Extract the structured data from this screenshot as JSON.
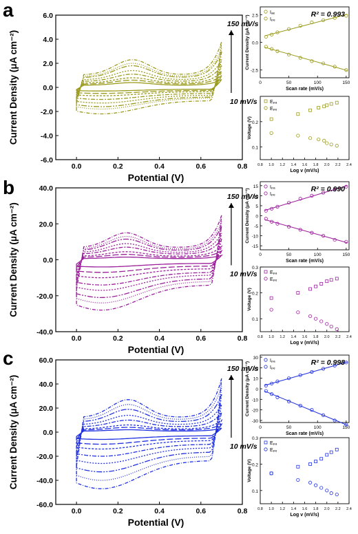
{
  "panels": [
    {
      "letter": "a",
      "color": "#9a9a1c",
      "main": {
        "ylabel": "Current Density (μA cm⁻²)",
        "xlabel": "Potential (V)",
        "y_ticks": [
          "-6.0",
          "-4.0",
          "-2.0",
          "0.0",
          "2.0",
          "4.0",
          "6.0"
        ],
        "x_ticks": [
          "0.0",
          "0.2",
          "0.4",
          "0.6",
          "0.8"
        ],
        "high_label": "150 mV/s",
        "low_label": "10 mV/s"
      },
      "rate": {
        "ylabel": "Current Density (μA cm⁻²)",
        "xlabel": "Scan rate (mV/s)",
        "y_ticks": [
          "-2.5",
          "0.0",
          "2.5"
        ],
        "x_ticks": [
          "0",
          "50",
          "100",
          "150"
        ],
        "r2": "R² = 0.993",
        "legend": [
          "Iₐₑ",
          "Iₚₑ"
        ]
      },
      "volt": {
        "ylabel": "Voltage (V)",
        "xlabel": "Log v (mV/s)",
        "y_ticks": [
          "0.1",
          "0.2"
        ],
        "x_ticks": [
          "0.8",
          "1.0",
          "1.2",
          "1.4",
          "1.6",
          "1.8",
          "2.0",
          "2.2",
          "2.4"
        ],
        "legend": [
          "Eₚₐ",
          "Eₚₑ"
        ]
      }
    },
    {
      "letter": "b",
      "color": "#9b1f9b",
      "main": {
        "ylabel": "Current Density (μA cm⁻²)",
        "xlabel": "Potential (V)",
        "y_ticks": [
          "-40.0",
          "-20.0",
          "0.0",
          "20.0",
          "40.0"
        ],
        "x_ticks": [
          "0.0",
          "0.2",
          "0.4",
          "0.6",
          "0.8"
        ],
        "high_label": "150 mV/s",
        "low_label": "10 mV/s"
      },
      "rate": {
        "ylabel": "Current Density (μA cm⁻²)",
        "xlabel": "Scan rate (mV/s)",
        "y_ticks": [
          "-15",
          "-10",
          "-5",
          "0",
          "5",
          "10",
          "15"
        ],
        "x_ticks": [
          "0",
          "50",
          "100",
          "150"
        ],
        "r2": "R² = 0.990",
        "legend": [
          "Iₚₐ",
          "Iₚₑ"
        ]
      },
      "volt": {
        "ylabel": "Voltage (V)",
        "xlabel": "Log v (mV/s)",
        "y_ticks": [
          "0.1",
          "0.2",
          "0.3"
        ],
        "x_ticks": [
          "0.8",
          "1.0",
          "1.2",
          "1.4",
          "1.6",
          "1.8",
          "2.0",
          "2.2",
          "2.4"
        ],
        "legend": [
          "Eₚₐ",
          "Eₚₑ"
        ]
      }
    },
    {
      "letter": "c",
      "color": "#1f2fe0",
      "main": {
        "ylabel": "Current Density (μA cm⁻²)",
        "xlabel": "Potential (V)",
        "y_ticks": [
          "-60.0",
          "-40.0",
          "-20.0",
          "0.0",
          "20.0",
          "40.0",
          "60.0"
        ],
        "x_ticks": [
          "0.0",
          "0.2",
          "0.4",
          "0.6",
          "0.8"
        ],
        "high_label": "150 mV/s",
        "low_label": "10 mV/s"
      },
      "rate": {
        "ylabel": "Current Density (μA cm⁻²)",
        "xlabel": "Scan rate (mV/s)",
        "y_ticks": [
          "-30",
          "-20",
          "-10",
          "0",
          "10",
          "20",
          "30"
        ],
        "x_ticks": [
          "0",
          "50",
          "100",
          "150"
        ],
        "r2": "R² = 0.998",
        "legend": [
          "Iₚₐ",
          "Iₚₑ"
        ]
      },
      "volt": {
        "ylabel": "Voltage (V)",
        "xlabel": "Log v (mV/s)",
        "y_ticks": [
          "0.1",
          "0.2",
          "0.3"
        ],
        "x_ticks": [
          "0.8",
          "1.0",
          "1.2",
          "1.4",
          "1.6",
          "1.8",
          "2.0",
          "2.2",
          "2.4"
        ],
        "legend": [
          "Eₚₐ",
          "Eₚₑ"
        ]
      }
    }
  ],
  "chart_data": [
    {
      "panel": "a",
      "type": "line",
      "chart": "cyclic voltammograms",
      "xlabel": "Potential (V)",
      "ylabel": "Current Density (μA cm⁻²)",
      "xlim": [
        -0.1,
        0.8
      ],
      "ylim": [
        -6,
        6
      ],
      "x_range_data": [
        0.0,
        0.7
      ],
      "scan_rates_mV_s": [
        10,
        20,
        30,
        50,
        70,
        100,
        120,
        150
      ],
      "peak_anodic_current": [
        0.4,
        0.6,
        0.8,
        1.1,
        1.4,
        1.8,
        2.0,
        2.3
      ],
      "peak_cathodic_current": [
        -0.3,
        -0.5,
        -0.7,
        -1.0,
        -1.3,
        -1.6,
        -1.8,
        -2.2
      ],
      "anodic_peak_potential_V": 0.27
    },
    {
      "panel": "a",
      "type": "scatter",
      "chart": "peak current vs scan rate",
      "xlabel": "Scan rate (mV/s)",
      "ylabel": "Current Density (μA cm⁻²)",
      "xlim": [
        0,
        155
      ],
      "ylim": [
        -3.2,
        3.2
      ],
      "series": [
        {
          "name": "Iₐₑ",
          "x": [
            10,
            20,
            30,
            50,
            70,
            90,
            110,
            130,
            150
          ],
          "y": [
            0.5,
            0.7,
            0.9,
            1.2,
            1.5,
            1.8,
            2.0,
            2.2,
            2.4
          ]
        },
        {
          "name": "Iₚₑ",
          "x": [
            10,
            20,
            30,
            50,
            70,
            90,
            110,
            130,
            150
          ],
          "y": [
            -0.4,
            -0.6,
            -0.8,
            -1.1,
            -1.4,
            -1.7,
            -1.9,
            -2.2,
            -2.5
          ]
        }
      ],
      "annotation": "R² = 0.993"
    },
    {
      "panel": "a",
      "type": "scatter",
      "chart": "peak potential vs log scan rate",
      "xlabel": "Log v (mV/s)",
      "ylabel": "Voltage (V)",
      "xlim": [
        0.8,
        2.4
      ],
      "ylim": [
        0.05,
        0.3
      ],
      "series": [
        {
          "name": "Eₚₐ",
          "x": [
            1.0,
            1.48,
            1.7,
            1.85,
            1.95,
            2.0,
            2.08,
            2.18
          ],
          "y": [
            0.21,
            0.23,
            0.245,
            0.255,
            0.26,
            0.265,
            0.27,
            0.275
          ]
        },
        {
          "name": "Eₚₑ",
          "x": [
            1.0,
            1.48,
            1.7,
            1.85,
            1.95,
            2.0,
            2.08,
            2.18
          ],
          "y": [
            0.155,
            0.145,
            0.135,
            0.13,
            0.125,
            0.115,
            0.11,
            0.105
          ]
        }
      ]
    },
    {
      "panel": "b",
      "type": "line",
      "chart": "cyclic voltammograms",
      "xlabel": "Potential (V)",
      "ylabel": "Current Density (μA cm⁻²)",
      "xlim": [
        -0.1,
        0.8
      ],
      "ylim": [
        -40,
        40
      ],
      "x_range_data": [
        0.0,
        0.7
      ],
      "scan_rates_mV_s": [
        10,
        20,
        30,
        50,
        70,
        100,
        120,
        150
      ],
      "peak_anodic_current": [
        1.5,
        3.0,
        4.5,
        7.0,
        9.0,
        11.5,
        13.0,
        15.0
      ],
      "peak_cathodic_current": [
        -4.0,
        -7.0,
        -10.0,
        -14.0,
        -17.0,
        -21.0,
        -24.0,
        -28.0
      ],
      "anodic_peak_potential_V": 0.24
    },
    {
      "panel": "b",
      "type": "scatter",
      "chart": "peak current vs scan rate",
      "xlabel": "Scan rate (mV/s)",
      "ylabel": "Current Density (μA cm⁻²)",
      "xlim": [
        0,
        155
      ],
      "ylim": [
        -17,
        17
      ],
      "series": [
        {
          "name": "Iₚₐ",
          "x": [
            10,
            20,
            30,
            50,
            70,
            90,
            110,
            130,
            150
          ],
          "y": [
            2.5,
            3.5,
            4.5,
            6.5,
            8.5,
            10.0,
            11.5,
            13.0,
            14.5
          ]
        },
        {
          "name": "Iₚₑ",
          "x": [
            10,
            20,
            30,
            50,
            70,
            90,
            110,
            130,
            150
          ],
          "y": [
            -1.5,
            -3.0,
            -4.0,
            -5.5,
            -7.0,
            -8.5,
            -10.0,
            -12.0,
            -13.0
          ]
        }
      ],
      "annotation": "R² = 0.990"
    },
    {
      "panel": "b",
      "type": "scatter",
      "chart": "peak potential vs log scan rate",
      "xlabel": "Log v (mV/s)",
      "ylabel": "Voltage (V)",
      "xlim": [
        0.8,
        2.4
      ],
      "ylim": [
        0.05,
        0.3
      ],
      "series": [
        {
          "name": "Eₚₐ",
          "x": [
            1.0,
            1.48,
            1.7,
            1.8,
            1.9,
            2.0,
            2.08,
            2.18
          ],
          "y": [
            0.18,
            0.2,
            0.215,
            0.225,
            0.235,
            0.245,
            0.25,
            0.255
          ]
        },
        {
          "name": "Eₚₑ",
          "x": [
            1.0,
            1.48,
            1.7,
            1.8,
            1.9,
            2.0,
            2.08,
            2.18
          ],
          "y": [
            0.135,
            0.125,
            0.11,
            0.1,
            0.09,
            0.08,
            0.07,
            0.06
          ]
        }
      ]
    },
    {
      "panel": "c",
      "type": "line",
      "chart": "cyclic voltammograms",
      "xlabel": "Potential (V)",
      "ylabel": "Current Density (μA cm⁻²)",
      "xlim": [
        -0.1,
        0.8
      ],
      "ylim": [
        -60,
        60
      ],
      "x_range_data": [
        0.0,
        0.7
      ],
      "scan_rates_mV_s": [
        10,
        20,
        30,
        50,
        70,
        100,
        120,
        150
      ],
      "peak_anodic_current": [
        2.0,
        4.0,
        6.0,
        10.0,
        14.0,
        19.0,
        23.0,
        27.0
      ],
      "peak_cathodic_current": [
        -6.0,
        -10.0,
        -14.0,
        -20.0,
        -26.0,
        -33.0,
        -40.0,
        -47.0
      ],
      "anodic_peak_potential_V": 0.25
    },
    {
      "panel": "c",
      "type": "scatter",
      "chart": "peak current vs scan rate",
      "xlabel": "Scan rate (mV/s)",
      "ylabel": "Current Density (μA cm⁻²)",
      "xlim": [
        0,
        155
      ],
      "ylim": [
        -32,
        32
      ],
      "series": [
        {
          "name": "Iₚₐ",
          "x": [
            10,
            20,
            30,
            50,
            70,
            90,
            110,
            130,
            150
          ],
          "y": [
            3,
            5,
            7,
            10,
            13,
            16,
            19,
            22,
            25
          ]
        },
        {
          "name": "Iₚₑ",
          "x": [
            10,
            20,
            30,
            50,
            70,
            90,
            110,
            130,
            150
          ],
          "y": [
            -2,
            -5,
            -8,
            -12,
            -16,
            -20,
            -25,
            -30,
            -34
          ]
        }
      ],
      "annotation": "R² = 0.998"
    },
    {
      "panel": "c",
      "type": "scatter",
      "chart": "peak potential vs log scan rate",
      "xlabel": "Log v (mV/s)",
      "ylabel": "Voltage (V)",
      "xlim": [
        0.8,
        2.4
      ],
      "ylim": [
        0.05,
        0.3
      ],
      "series": [
        {
          "name": "Eₚₐ",
          "x": [
            1.0,
            1.48,
            1.7,
            1.8,
            1.9,
            2.0,
            2.08,
            2.18
          ],
          "y": [
            0.165,
            0.19,
            0.2,
            0.21,
            0.22,
            0.235,
            0.245,
            0.255
          ]
        },
        {
          "name": "Eₚₑ",
          "x": [
            1.0,
            1.48,
            1.7,
            1.8,
            1.9,
            2.0,
            2.08,
            2.18
          ],
          "y": [
            0.165,
            0.14,
            0.13,
            0.12,
            0.11,
            0.1,
            0.09,
            0.085
          ]
        }
      ]
    }
  ]
}
